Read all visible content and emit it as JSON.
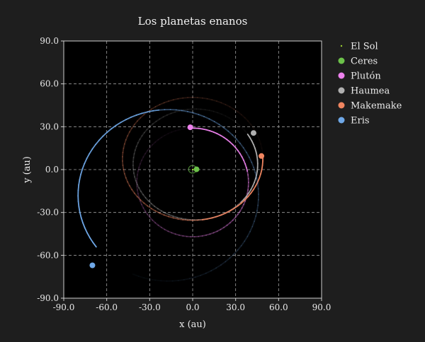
{
  "chart_data": {
    "type": "scatter",
    "title": "Los planetas enanos",
    "xlabel": "x (au)",
    "ylabel": "y (au)",
    "xlim": [
      -90,
      90
    ],
    "ylim": [
      -90,
      90
    ],
    "xticks": [
      -90,
      -60,
      -30,
      0,
      30,
      60,
      90
    ],
    "yticks": [
      -90,
      -60,
      -30,
      0,
      30,
      60,
      90
    ],
    "xtick_labels": [
      "-90.0",
      "-60.0",
      "-30.0",
      "0.0",
      "30.0",
      "60.0",
      "90.0"
    ],
    "ytick_labels": [
      "-90.0",
      "-60.0",
      "-30.0",
      "0.0",
      "30.0",
      "60.0",
      "90.0"
    ],
    "grid": true,
    "legend_position": "outside right, top",
    "background": "#1e1e1e",
    "plot_background": "#000000",
    "series": [
      {
        "name": "El Sol",
        "color": "#9acd32",
        "marker": "dot-small",
        "x": 0,
        "y": 0,
        "orbit": null
      },
      {
        "name": "Ceres",
        "color": "#6cc24a",
        "marker": "circle",
        "x": 2.7,
        "y": 0.2,
        "orbit": {
          "cx": -0.1,
          "cy": 0.2,
          "rx": 2.8,
          "ry": 2.7
        }
      },
      {
        "name": "Plutón",
        "color": "#ee82ee",
        "marker": "circle",
        "x": -1.7,
        "y": 29.6,
        "orbit": {
          "cx": 0.0,
          "cy": -9.0,
          "rx": 39.0,
          "ry": 38.0,
          "head_deg": 92,
          "trail_deg": 80,
          "span_deg": 360
        }
      },
      {
        "name": "Haumea",
        "color": "#b0b0b0",
        "marker": "circle",
        "x": 42.5,
        "y": 25.6,
        "orbit": {
          "cx": 1.9,
          "cy": 3.6,
          "rx": 43.5,
          "ry": 38.8,
          "head_deg": 33,
          "trail_deg": 75,
          "span_deg": 360
        }
      },
      {
        "name": "Makemake",
        "color": "#f08560",
        "marker": "circle",
        "x": 48.0,
        "y": 9.5,
        "orbit": {
          "cx": 0.0,
          "cy": 7.5,
          "rx": 49.0,
          "ry": 43.0,
          "head_deg": 2,
          "trail_deg": 85,
          "span_deg": 360
        }
      },
      {
        "name": "Eris",
        "color": "#6fa8e8",
        "marker": "circle",
        "x": -70.0,
        "y": -67.0,
        "orbit": {
          "cx": -17.0,
          "cy": -18.0,
          "rx": 63.0,
          "ry": 60.0,
          "head_deg": 217,
          "trail_deg": 120,
          "span_deg": 330
        }
      }
    ]
  }
}
